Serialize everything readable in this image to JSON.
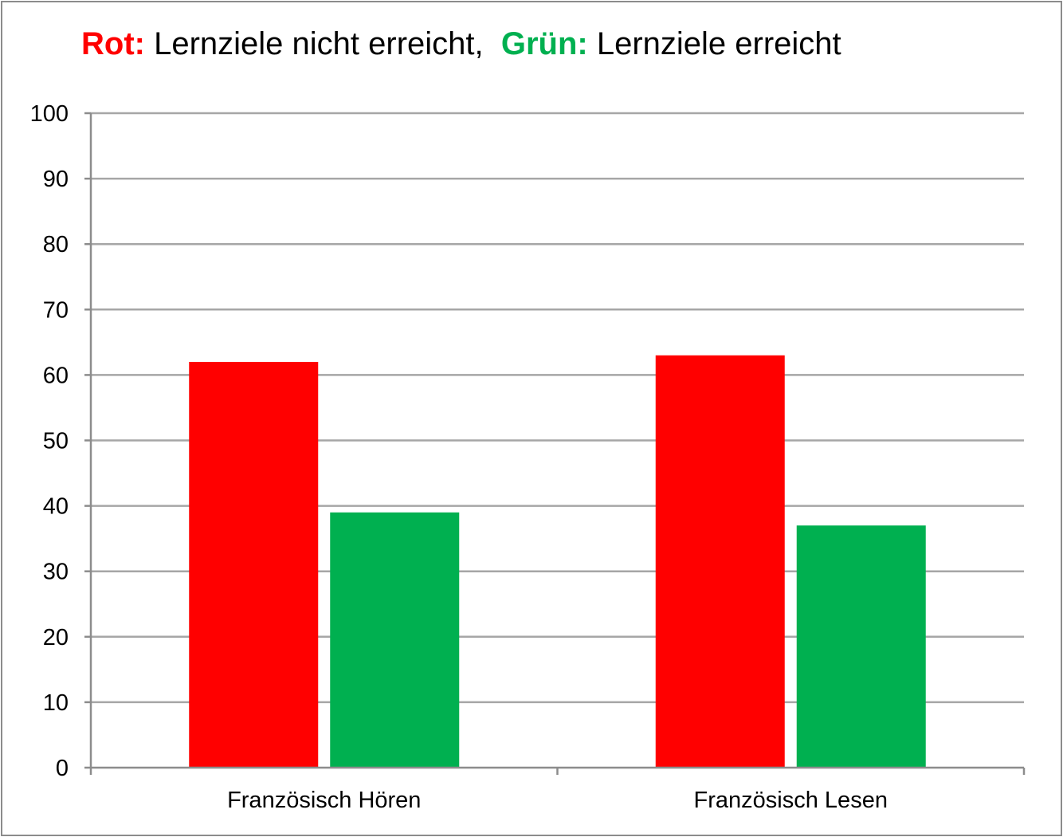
{
  "chart_data": {
    "type": "bar",
    "title": [
      {
        "key": "Rot:",
        "key_color": "#ff0000",
        "text": " Lernziele nicht erreicht,  "
      },
      {
        "key": "Grün:",
        "key_color": "#00b050",
        "text": " Lernziele erreicht"
      }
    ],
    "categories": [
      "Französisch Hören",
      "Französisch Lesen"
    ],
    "series": [
      {
        "color": "#ff0000",
        "values": [
          62,
          63
        ]
      },
      {
        "color": "#00b050",
        "values": [
          39,
          37
        ]
      }
    ],
    "ylim": [
      0,
      100
    ],
    "yticks": [
      "0",
      "10",
      "20",
      "30",
      "40",
      "50",
      "60",
      "70",
      "80",
      "90",
      "100"
    ],
    "grid": true,
    "xlabel": "",
    "ylabel": ""
  }
}
